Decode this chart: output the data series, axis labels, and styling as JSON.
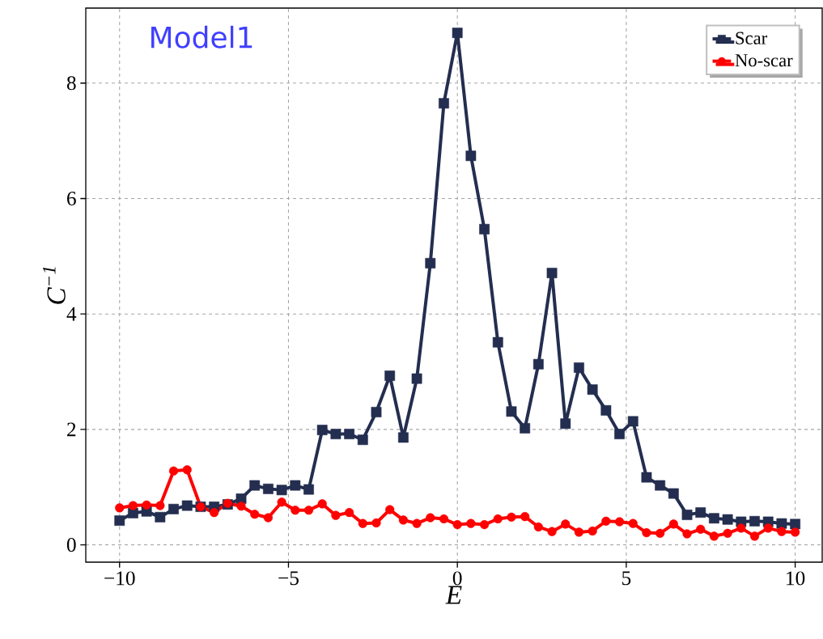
{
  "chart_data": {
    "type": "line",
    "xlabel": "E",
    "ylabel": "C$^{−1}$",
    "annotations": [
      "Model1"
    ],
    "x": [
      -10,
      -9.6,
      -9.2,
      -8.8,
      -8.4,
      -8.0,
      -7.6,
      -7.2,
      -6.8,
      -6.4,
      -6.0,
      -5.6,
      -5.2,
      -4.8,
      -4.4,
      -4.0,
      -3.6,
      -3.2,
      -2.8,
      -2.4,
      -2.0,
      -1.6,
      -1.2,
      -0.8,
      -0.4,
      0,
      0.4,
      0.8,
      1.2,
      1.6,
      2.0,
      2.4,
      2.8,
      3.2,
      3.6,
      4.0,
      4.4,
      4.8,
      5.2,
      5.6,
      6.0,
      6.4,
      6.8,
      7.2,
      7.6,
      8.0,
      8.4,
      8.8,
      9.2,
      9.6,
      10
    ],
    "series": [
      {
        "name": "Scar",
        "color": "#232e50",
        "marker": "square",
        "values": [
          0.42,
          0.55,
          0.58,
          0.48,
          0.62,
          0.68,
          0.66,
          0.66,
          0.7,
          0.8,
          1.03,
          0.97,
          0.95,
          1.03,
          0.96,
          1.99,
          1.92,
          1.92,
          1.82,
          2.3,
          2.93,
          1.86,
          2.88,
          4.88,
          7.65,
          8.87,
          6.74,
          5.47,
          3.51,
          2.31,
          2.02,
          3.13,
          4.71,
          2.1,
          3.07,
          2.69,
          2.33,
          1.92,
          2.14,
          1.17,
          1.03,
          0.89,
          0.52,
          0.56,
          0.46,
          0.44,
          0.4,
          0.41,
          0.4,
          0.37,
          0.36
        ]
      },
      {
        "name": "No-scar",
        "color": "#ff0000",
        "marker": "circle",
        "values": [
          0.64,
          0.68,
          0.69,
          0.68,
          1.28,
          1.3,
          0.66,
          0.56,
          0.72,
          0.67,
          0.53,
          0.47,
          0.74,
          0.6,
          0.6,
          0.71,
          0.51,
          0.56,
          0.37,
          0.38,
          0.61,
          0.43,
          0.37,
          0.47,
          0.45,
          0.35,
          0.37,
          0.35,
          0.45,
          0.48,
          0.49,
          0.31,
          0.23,
          0.36,
          0.22,
          0.24,
          0.41,
          0.4,
          0.37,
          0.21,
          0.2,
          0.36,
          0.19,
          0.27,
          0.15,
          0.2,
          0.29,
          0.15,
          0.29,
          0.23,
          0.22
        ]
      }
    ],
    "xlim": [
      -11,
      10.8
    ],
    "ylim": [
      -0.3,
      9.3
    ],
    "xticks": [
      {
        "value": -10,
        "label": "−10"
      },
      {
        "value": -5,
        "label": "−5"
      },
      0,
      5,
      10
    ],
    "yticks": [
      0,
      2,
      4,
      6,
      8
    ],
    "grid": true,
    "legend": "top right",
    "line_style": "solid"
  }
}
